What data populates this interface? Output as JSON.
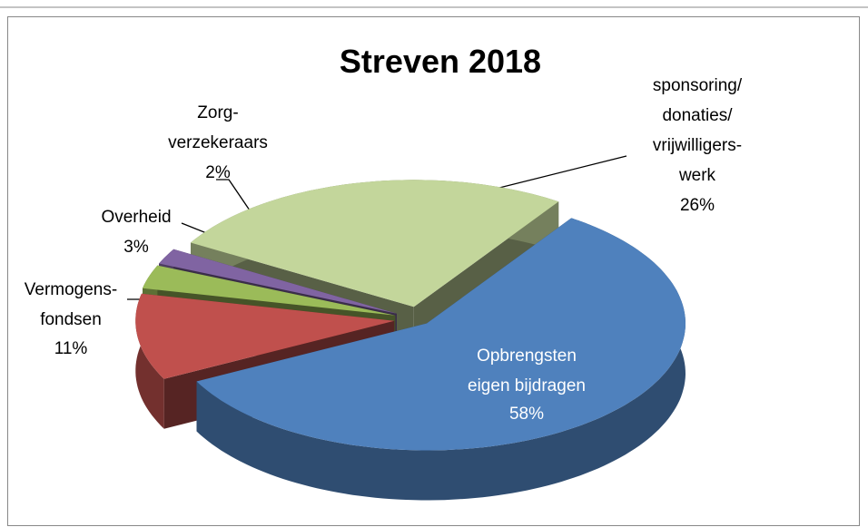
{
  "chart_data": {
    "type": "pie3d",
    "title": "Streven 2018",
    "categories": [
      "Opbrengsten\neigen bijdragen",
      "Vermogens-\nfondsen",
      "Overheid",
      "Zorg-\nverzekeraars",
      "sponsoring/\ndonaties/\nvrijwilligers-\nwerk"
    ],
    "values": [
      58,
      11,
      3,
      2,
      26
    ],
    "value_labels": [
      "58%",
      "11%",
      "3%",
      "2%",
      "26%"
    ],
    "colors": [
      "#4f81bd",
      "#c0504d",
      "#9bbb59",
      "#8064a2",
      "#c3d69b"
    ]
  }
}
